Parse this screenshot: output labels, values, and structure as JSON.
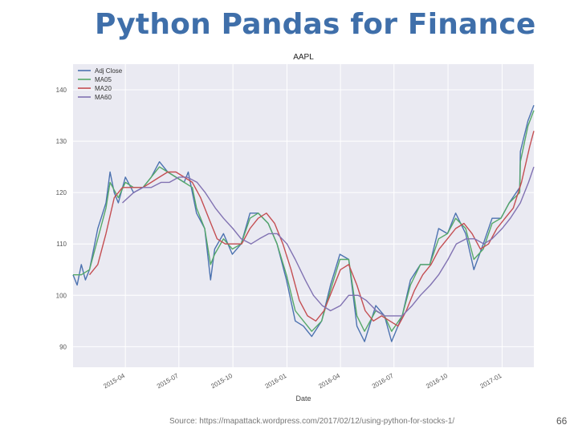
{
  "slide": {
    "title": "Python Pandas for Finance",
    "source": "Source: https://mapattack.wordpress.com/2017/02/12/using-python-for-stocks-1/",
    "page_number": "66"
  },
  "colors": {
    "title": "#3f6faa",
    "plot_background": "#eaeaf2",
    "grid": "#ffffff"
  },
  "chart_data": {
    "type": "line",
    "title": "AAPL",
    "xlabel": "Date",
    "ylabel": "",
    "grid": true,
    "legend_position": "top-left",
    "x_start": "2015-01-02",
    "x_end": "2017-02-24",
    "ylim": [
      86,
      145
    ],
    "y_ticks": [
      90,
      100,
      110,
      120,
      130,
      140
    ],
    "x_ticks": [
      {
        "date": "2015-04-01",
        "label": "2015-04"
      },
      {
        "date": "2015-07-01",
        "label": "2015-07"
      },
      {
        "date": "2015-10-01",
        "label": "2015-10"
      },
      {
        "date": "2016-01-01",
        "label": "2016-01"
      },
      {
        "date": "2016-04-01",
        "label": "2016-04"
      },
      {
        "date": "2016-07-01",
        "label": "2016-07"
      },
      {
        "date": "2016-10-01",
        "label": "2016-10"
      },
      {
        "date": "2017-01-01",
        "label": "2017-01"
      }
    ],
    "series": [
      {
        "name": "Adj Close",
        "color": "#4c72b0",
        "points": [
          [
            "2015-01-02",
            104
          ],
          [
            "2015-01-09",
            102
          ],
          [
            "2015-01-16",
            106
          ],
          [
            "2015-01-23",
            103
          ],
          [
            "2015-01-30",
            105
          ],
          [
            "2015-02-13",
            113
          ],
          [
            "2015-02-27",
            118
          ],
          [
            "2015-03-06",
            124
          ],
          [
            "2015-03-13",
            120
          ],
          [
            "2015-03-20",
            118
          ],
          [
            "2015-04-01",
            123
          ],
          [
            "2015-04-15",
            120
          ],
          [
            "2015-05-01",
            121
          ],
          [
            "2015-05-15",
            123
          ],
          [
            "2015-05-29",
            126
          ],
          [
            "2015-06-12",
            124
          ],
          [
            "2015-06-26",
            123
          ],
          [
            "2015-07-10",
            122
          ],
          [
            "2015-07-17",
            124
          ],
          [
            "2015-07-24",
            120
          ],
          [
            "2015-07-31",
            116
          ],
          [
            "2015-08-14",
            113
          ],
          [
            "2015-08-24",
            103
          ],
          [
            "2015-08-31",
            109
          ],
          [
            "2015-09-15",
            112
          ],
          [
            "2015-09-30",
            108
          ],
          [
            "2015-10-15",
            110
          ],
          [
            "2015-10-30",
            116
          ],
          [
            "2015-11-13",
            116
          ],
          [
            "2015-11-30",
            114
          ],
          [
            "2015-12-15",
            110
          ],
          [
            "2015-12-31",
            103
          ],
          [
            "2016-01-15",
            95
          ],
          [
            "2016-01-29",
            94
          ],
          [
            "2016-02-12",
            92
          ],
          [
            "2016-02-29",
            95
          ],
          [
            "2016-03-15",
            102
          ],
          [
            "2016-03-31",
            108
          ],
          [
            "2016-04-15",
            107
          ],
          [
            "2016-04-29",
            94
          ],
          [
            "2016-05-12",
            91
          ],
          [
            "2016-05-31",
            98
          ],
          [
            "2016-06-15",
            96
          ],
          [
            "2016-06-27",
            91
          ],
          [
            "2016-07-15",
            96
          ],
          [
            "2016-07-29",
            103
          ],
          [
            "2016-08-15",
            106
          ],
          [
            "2016-08-31",
            106
          ],
          [
            "2016-09-15",
            113
          ],
          [
            "2016-09-30",
            112
          ],
          [
            "2016-10-14",
            116
          ],
          [
            "2016-10-31",
            112
          ],
          [
            "2016-11-14",
            105
          ],
          [
            "2016-11-30",
            110
          ],
          [
            "2016-12-15",
            115
          ],
          [
            "2016-12-30",
            115
          ],
          [
            "2017-01-13",
            118
          ],
          [
            "2017-01-31",
            121
          ],
          [
            "2017-02-01",
            128
          ],
          [
            "2017-02-14",
            134
          ],
          [
            "2017-02-24",
            137
          ]
        ]
      },
      {
        "name": "MA05",
        "color": "#55a868",
        "points": [
          [
            "2015-01-02",
            104
          ],
          [
            "2015-01-16",
            104
          ],
          [
            "2015-01-30",
            105
          ],
          [
            "2015-02-13",
            111
          ],
          [
            "2015-02-27",
            117
          ],
          [
            "2015-03-06",
            122
          ],
          [
            "2015-03-20",
            119
          ],
          [
            "2015-04-01",
            122
          ],
          [
            "2015-04-15",
            121
          ],
          [
            "2015-05-01",
            121
          ],
          [
            "2015-05-15",
            123
          ],
          [
            "2015-05-29",
            125
          ],
          [
            "2015-06-12",
            124
          ],
          [
            "2015-06-26",
            123
          ],
          [
            "2015-07-10",
            122
          ],
          [
            "2015-07-24",
            121
          ],
          [
            "2015-07-31",
            117
          ],
          [
            "2015-08-14",
            113
          ],
          [
            "2015-08-24",
            106
          ],
          [
            "2015-08-31",
            108
          ],
          [
            "2015-09-15",
            111
          ],
          [
            "2015-09-30",
            109
          ],
          [
            "2015-10-15",
            110
          ],
          [
            "2015-10-30",
            115
          ],
          [
            "2015-11-13",
            116
          ],
          [
            "2015-11-30",
            114
          ],
          [
            "2015-12-15",
            110
          ],
          [
            "2015-12-31",
            104
          ],
          [
            "2016-01-15",
            97
          ],
          [
            "2016-01-29",
            95
          ],
          [
            "2016-02-12",
            93
          ],
          [
            "2016-02-29",
            95
          ],
          [
            "2016-03-15",
            101
          ],
          [
            "2016-03-31",
            107
          ],
          [
            "2016-04-15",
            107
          ],
          [
            "2016-04-29",
            96
          ],
          [
            "2016-05-12",
            93
          ],
          [
            "2016-05-31",
            97
          ],
          [
            "2016-06-15",
            96
          ],
          [
            "2016-06-27",
            93
          ],
          [
            "2016-07-15",
            96
          ],
          [
            "2016-07-29",
            102
          ],
          [
            "2016-08-15",
            106
          ],
          [
            "2016-08-31",
            106
          ],
          [
            "2016-09-15",
            111
          ],
          [
            "2016-09-30",
            112
          ],
          [
            "2016-10-14",
            115
          ],
          [
            "2016-10-31",
            113
          ],
          [
            "2016-11-14",
            107
          ],
          [
            "2016-11-30",
            109
          ],
          [
            "2016-12-15",
            114
          ],
          [
            "2016-12-30",
            115
          ],
          [
            "2017-01-13",
            118
          ],
          [
            "2017-01-31",
            120
          ],
          [
            "2017-02-01",
            126
          ],
          [
            "2017-02-14",
            133
          ],
          [
            "2017-02-24",
            136
          ]
        ]
      },
      {
        "name": "MA20",
        "color": "#c44e52",
        "points": [
          [
            "2015-01-30",
            104
          ],
          [
            "2015-02-13",
            106
          ],
          [
            "2015-02-27",
            112
          ],
          [
            "2015-03-13",
            119
          ],
          [
            "2015-03-27",
            121
          ],
          [
            "2015-04-15",
            121
          ],
          [
            "2015-05-01",
            121
          ],
          [
            "2015-05-15",
            122
          ],
          [
            "2015-05-29",
            123
          ],
          [
            "2015-06-12",
            124
          ],
          [
            "2015-06-26",
            124
          ],
          [
            "2015-07-10",
            123
          ],
          [
            "2015-07-24",
            122
          ],
          [
            "2015-08-07",
            119
          ],
          [
            "2015-08-21",
            115
          ],
          [
            "2015-09-04",
            111
          ],
          [
            "2015-09-18",
            110
          ],
          [
            "2015-10-02",
            110
          ],
          [
            "2015-10-16",
            110
          ],
          [
            "2015-10-30",
            113
          ],
          [
            "2015-11-13",
            115
          ],
          [
            "2015-11-27",
            116
          ],
          [
            "2015-12-11",
            114
          ],
          [
            "2015-12-25",
            110
          ],
          [
            "2016-01-08",
            105
          ],
          [
            "2016-01-22",
            99
          ],
          [
            "2016-02-05",
            96
          ],
          [
            "2016-02-19",
            95
          ],
          [
            "2016-03-04",
            97
          ],
          [
            "2016-03-18",
            101
          ],
          [
            "2016-04-01",
            105
          ],
          [
            "2016-04-15",
            106
          ],
          [
            "2016-04-29",
            102
          ],
          [
            "2016-05-13",
            97
          ],
          [
            "2016-05-27",
            95
          ],
          [
            "2016-06-10",
            96
          ],
          [
            "2016-06-24",
            95
          ],
          [
            "2016-07-08",
            94
          ],
          [
            "2016-07-22",
            97
          ],
          [
            "2016-08-05",
            101
          ],
          [
            "2016-08-19",
            104
          ],
          [
            "2016-09-02",
            106
          ],
          [
            "2016-09-16",
            109
          ],
          [
            "2016-09-30",
            111
          ],
          [
            "2016-10-14",
            113
          ],
          [
            "2016-10-28",
            114
          ],
          [
            "2016-11-11",
            112
          ],
          [
            "2016-11-25",
            109
          ],
          [
            "2016-12-09",
            110
          ],
          [
            "2016-12-23",
            113
          ],
          [
            "2017-01-06",
            115
          ],
          [
            "2017-01-20",
            117
          ],
          [
            "2017-02-03",
            122
          ],
          [
            "2017-02-17",
            129
          ],
          [
            "2017-02-24",
            132
          ]
        ]
      },
      {
        "name": "MA60",
        "color": "#8172b2",
        "points": [
          [
            "2015-03-27",
            118
          ],
          [
            "2015-04-15",
            120
          ],
          [
            "2015-05-01",
            121
          ],
          [
            "2015-05-15",
            121
          ],
          [
            "2015-06-01",
            122
          ],
          [
            "2015-06-15",
            122
          ],
          [
            "2015-07-01",
            123
          ],
          [
            "2015-07-15",
            123
          ],
          [
            "2015-08-01",
            122
          ],
          [
            "2015-08-15",
            120
          ],
          [
            "2015-09-01",
            117
          ],
          [
            "2015-09-15",
            115
          ],
          [
            "2015-10-01",
            113
          ],
          [
            "2015-10-15",
            111
          ],
          [
            "2015-11-01",
            110
          ],
          [
            "2015-11-15",
            111
          ],
          [
            "2015-12-01",
            112
          ],
          [
            "2015-12-15",
            112
          ],
          [
            "2016-01-01",
            110
          ],
          [
            "2016-01-15",
            107
          ],
          [
            "2016-02-01",
            103
          ],
          [
            "2016-02-15",
            100
          ],
          [
            "2016-03-01",
            98
          ],
          [
            "2016-03-15",
            97
          ],
          [
            "2016-04-01",
            98
          ],
          [
            "2016-04-15",
            100
          ],
          [
            "2016-05-01",
            100
          ],
          [
            "2016-05-15",
            99
          ],
          [
            "2016-06-01",
            97
          ],
          [
            "2016-06-15",
            96
          ],
          [
            "2016-07-01",
            96
          ],
          [
            "2016-07-15",
            96
          ],
          [
            "2016-08-01",
            98
          ],
          [
            "2016-08-15",
            100
          ],
          [
            "2016-09-01",
            102
          ],
          [
            "2016-09-15",
            104
          ],
          [
            "2016-10-01",
            107
          ],
          [
            "2016-10-15",
            110
          ],
          [
            "2016-11-01",
            111
          ],
          [
            "2016-11-15",
            111
          ],
          [
            "2016-12-01",
            110
          ],
          [
            "2016-12-15",
            111
          ],
          [
            "2017-01-01",
            113
          ],
          [
            "2017-01-15",
            115
          ],
          [
            "2017-02-01",
            118
          ],
          [
            "2017-02-15",
            122
          ],
          [
            "2017-02-24",
            125
          ]
        ]
      }
    ]
  }
}
